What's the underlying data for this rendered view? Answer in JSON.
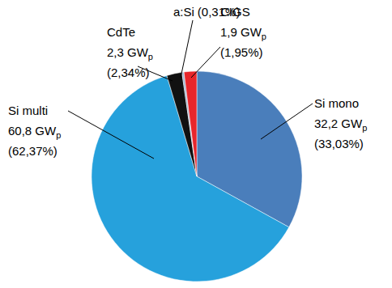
{
  "chart_data": {
    "type": "pie",
    "categories": [
      "Si mono",
      "Si multi",
      "CdTe",
      "a:Si",
      "CIGS"
    ],
    "values": [
      33.03,
      62.37,
      2.34,
      0.31,
      1.95
    ],
    "value_labels": [
      "(33,03%)",
      "(62,37%)",
      "(2,34%)",
      "(0,31%)",
      "(1,95%)"
    ],
    "gw_labels": [
      "32,2 GWp",
      "60,8 GWp",
      "2,3 GWp",
      null,
      "1,9 GWp"
    ],
    "colors": [
      "#4a7ebb",
      "#26a1dc",
      "#111111",
      "#9bb7d4",
      "#e8262b"
    ],
    "data_labels": true
  }
}
